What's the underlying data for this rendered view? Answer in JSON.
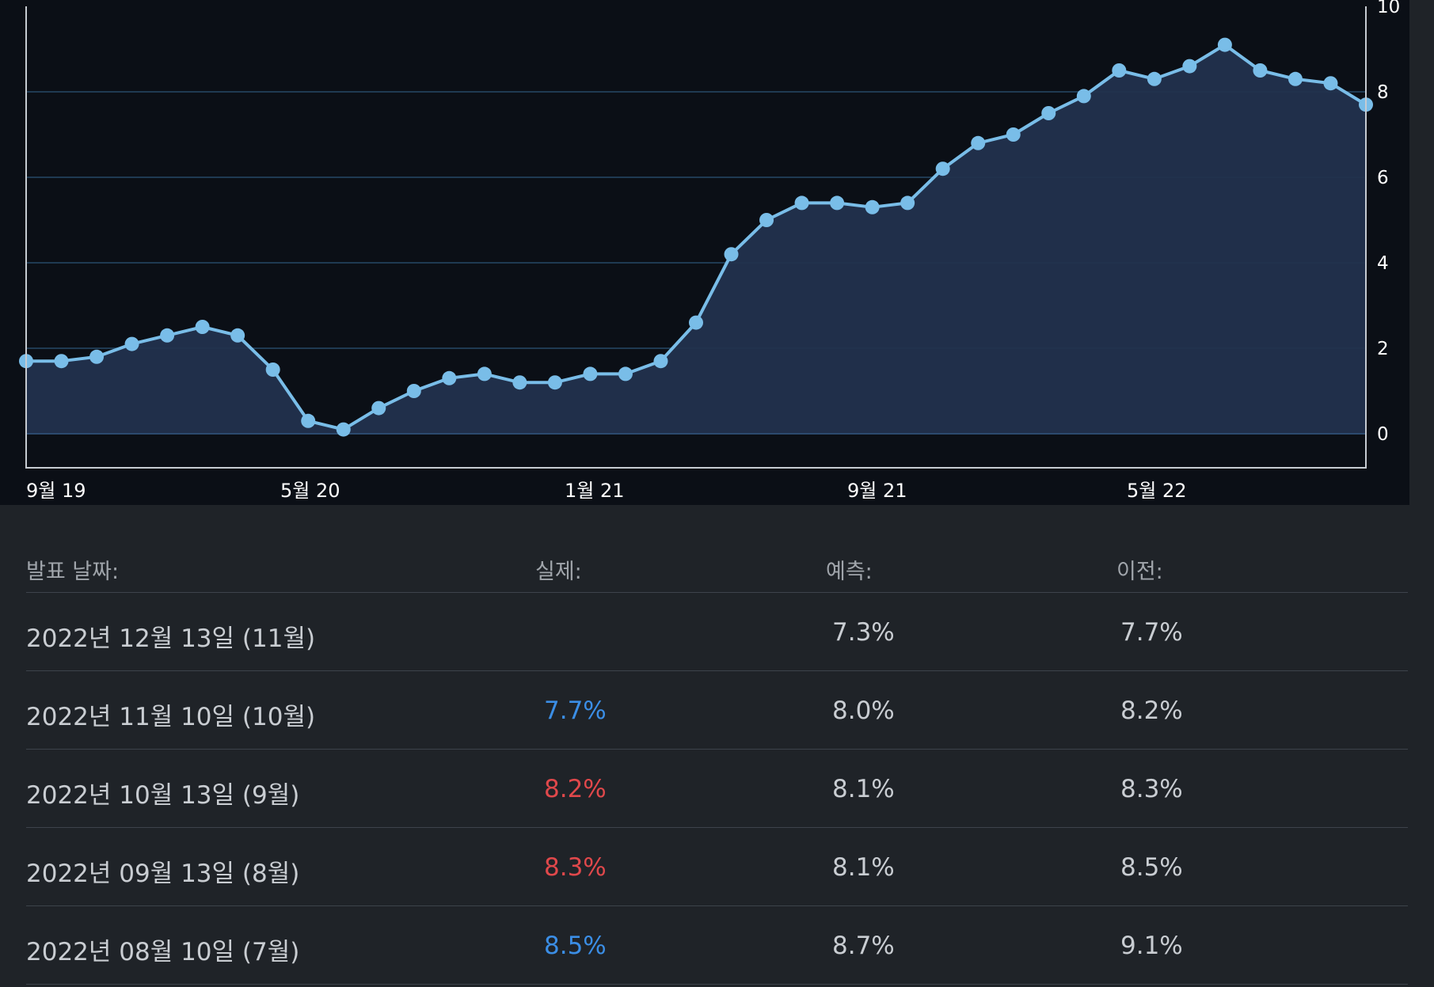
{
  "colors": {
    "line": "#79bde8",
    "area": "#22324d",
    "grid": "#1f3a52",
    "actual_up": "#e0484b",
    "actual_down": "#3b8ee6"
  },
  "chart_data": {
    "type": "area",
    "grid": true,
    "y_axis_position": "right",
    "ylim": [
      -0.8,
      10
    ],
    "y_ticks": [
      "0",
      "2",
      "4",
      "6",
      "8",
      "10"
    ],
    "x_ticks": [
      "9월 19",
      "5월 20",
      "1월 21",
      "9월 21",
      "5월 22"
    ],
    "series": [
      {
        "values": [
          1.7,
          1.7,
          1.8,
          2.1,
          2.3,
          2.5,
          2.3,
          1.5,
          0.3,
          0.1,
          0.6,
          1.0,
          1.3,
          1.4,
          1.2,
          1.2,
          1.4,
          1.4,
          1.7,
          2.6,
          4.2,
          5.0,
          5.4,
          5.4,
          5.3,
          5.4,
          6.2,
          6.8,
          7.0,
          7.5,
          7.9,
          8.5,
          8.3,
          8.6,
          9.1,
          8.5,
          8.3,
          8.2,
          7.7
        ]
      }
    ]
  },
  "table": {
    "headers": {
      "date": "발표 날짜:",
      "actual": "실제:",
      "forecast": "예측:",
      "previous": "이전:"
    },
    "rows": [
      {
        "date": "2022년 12월 13일 (11월)",
        "actual": "",
        "actual_dir": "none",
        "forecast": "7.3%",
        "previous": "7.7%"
      },
      {
        "date": "2022년 11월 10일 (10월)",
        "actual": "7.7%",
        "actual_dir": "down",
        "forecast": "8.0%",
        "previous": "8.2%"
      },
      {
        "date": "2022년 10월 13일 (9월)",
        "actual": "8.2%",
        "actual_dir": "up",
        "forecast": "8.1%",
        "previous": "8.3%"
      },
      {
        "date": "2022년 09월 13일 (8월)",
        "actual": "8.3%",
        "actual_dir": "up",
        "forecast": "8.1%",
        "previous": "8.5%"
      },
      {
        "date": "2022년 08월 10일 (7월)",
        "actual": "8.5%",
        "actual_dir": "down",
        "forecast": "8.7%",
        "previous": "9.1%"
      }
    ]
  }
}
